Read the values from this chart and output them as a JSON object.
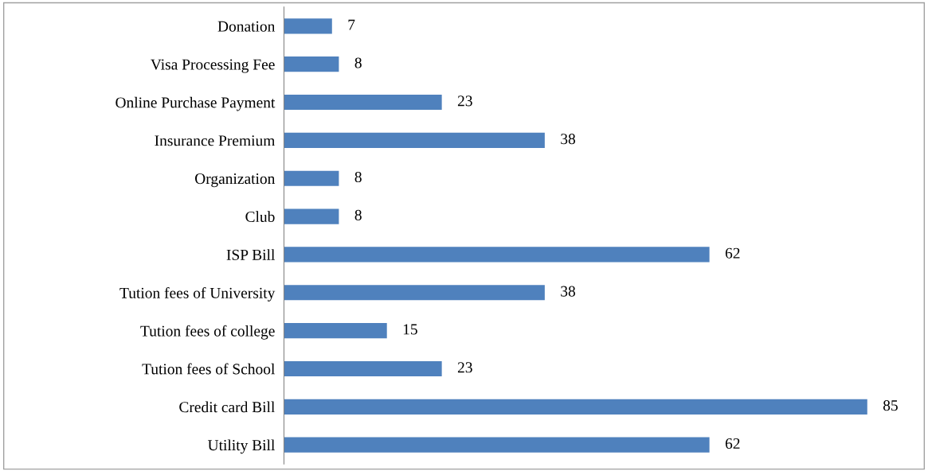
{
  "chart_data": {
    "type": "bar",
    "orientation": "horizontal",
    "categories": [
      "Donation",
      "Visa Processing Fee",
      "Online Purchase Payment",
      "Insurance Premium",
      "Organization",
      "Club",
      "ISP Bill",
      "Tution fees of University",
      "Tution fees of college",
      "Tution fees of School",
      "Credit card Bill",
      "Utility Bill"
    ],
    "values": [
      7,
      8,
      23,
      38,
      8,
      8,
      62,
      38,
      15,
      23,
      85,
      62
    ],
    "color": "#4f81bd",
    "data_labels": true,
    "grid": false,
    "legend": false
  }
}
